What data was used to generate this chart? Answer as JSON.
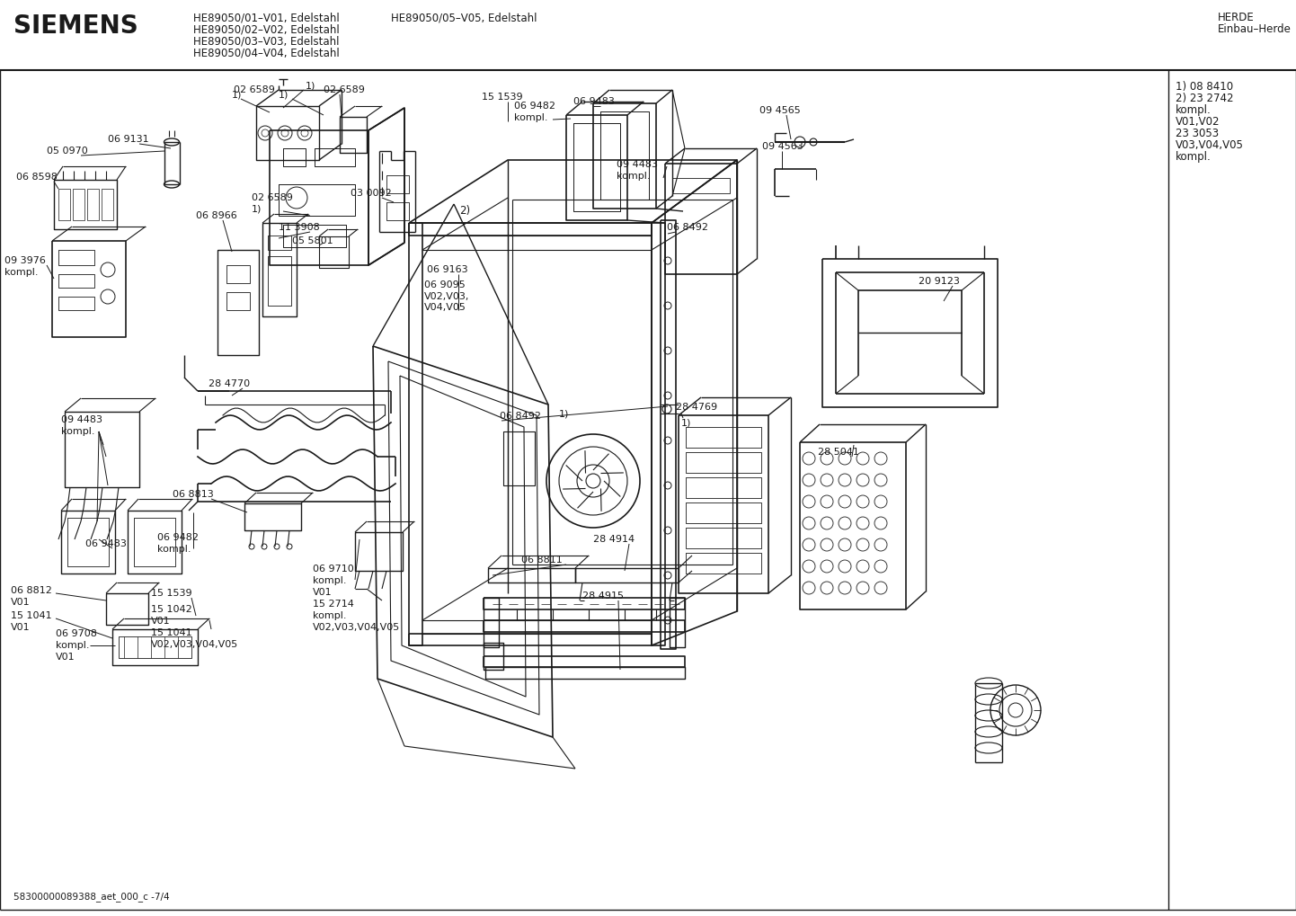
{
  "title_brand": "SIEMENS",
  "header_line1": "HE89050/01–V01, Edelstahl",
  "header_line2": "HE89050/02–V02, Edelstahl",
  "header_line3": "HE89050/03–V03, Edelstahl",
  "header_line4": "HE89050/04–V04, Edelstahl",
  "header_col2": "HE89050/05–V05, Edelstahl",
  "header_right1": "HERDE",
  "header_right2": "Einbau–Herde",
  "footer_text": "58300000089388_aet_000_c -7/4",
  "bg_color": "#ffffff",
  "line_color": "#1a1a1a",
  "text_color": "#1a1a1a",
  "fig_width": 14.42,
  "fig_height": 10.19,
  "dpi": 100
}
